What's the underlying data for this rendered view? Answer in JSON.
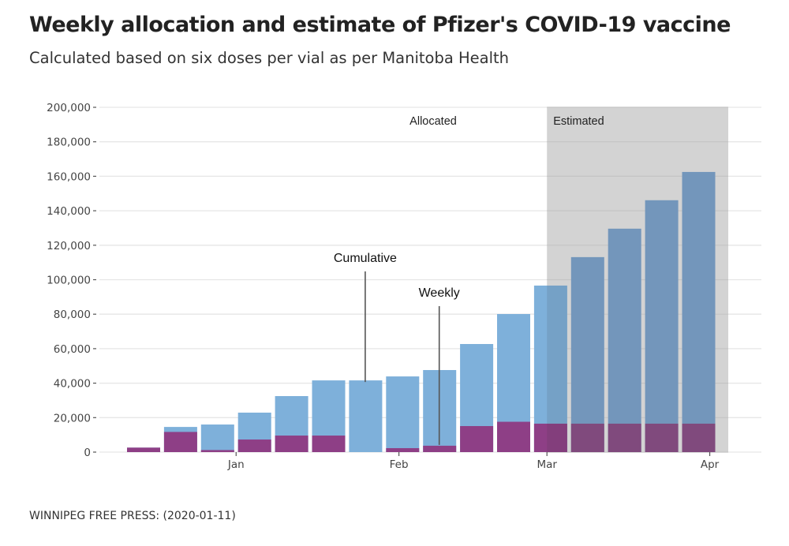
{
  "header": {
    "title": "Weekly allocation and estimate of Pfizer's COVID-19 vaccine",
    "subtitle": "Calculated based on six doses per vial as per Manitoba Health"
  },
  "footer": {
    "source": "WINNIPEG FREE PRESS: (2020-01-11)"
  },
  "colors": {
    "cumulative": "#7eb0da",
    "cumulative_estimated": "#7396bb",
    "weekly": "#8e3f86",
    "weekly_estimated": "#804a7d",
    "estimated_region": "#d3d3d3",
    "grid": "#e6e6e6",
    "annotation_line": "#555555"
  },
  "chart_data": {
    "type": "bar",
    "title": "Weekly allocation and estimate of Pfizer's COVID-19 vaccine",
    "subtitle": "Calculated based on six doses per vial as per Manitoba Health",
    "xlabel": "",
    "ylabel": "",
    "ylim": [
      0,
      200000
    ],
    "yticks": [
      0,
      20000,
      40000,
      60000,
      80000,
      100000,
      120000,
      140000,
      160000,
      180000,
      200000
    ],
    "ytick_labels": [
      "0",
      "20,000",
      "40,000",
      "60,000",
      "80,000",
      "100,000",
      "120,000",
      "140,000",
      "160,000",
      "180,000",
      "200,000"
    ],
    "grid": true,
    "x_week_index": [
      1,
      2,
      3,
      4,
      5,
      6,
      7,
      8,
      9,
      10,
      11,
      12,
      13,
      14,
      15,
      16
    ],
    "xticks": [
      {
        "label": "Jan",
        "at_week": 3.5
      },
      {
        "label": "Feb",
        "at_week": 7.9
      },
      {
        "label": "Mar",
        "at_week": 11.9
      },
      {
        "label": "Apr",
        "at_week": 16.3
      }
    ],
    "series": [
      {
        "name": "Cumulative",
        "values": [
          2600,
          14600,
          16000,
          22900,
          32500,
          41600,
          41600,
          43900,
          47600,
          62700,
          80100,
          96600,
          113100,
          129600,
          146100,
          162500
        ]
      },
      {
        "name": "Weekly",
        "values": [
          2600,
          11700,
          1200,
          7300,
          9600,
          9600,
          0,
          2300,
          3700,
          15100,
          17600,
          16500,
          16500,
          16500,
          16500,
          16500
        ]
      }
    ],
    "regions": [
      {
        "label": "Allocated",
        "from_week": 0.5,
        "to_week": 11.9
      },
      {
        "label": "Estimated",
        "from_week": 11.9,
        "to_week": 16.8
      }
    ],
    "annotations": [
      {
        "text": "Cumulative",
        "points_to_week": 7,
        "series": "Cumulative"
      },
      {
        "text": "Weekly",
        "points_to_week": 9,
        "series": "Weekly"
      }
    ],
    "legend": "none"
  }
}
